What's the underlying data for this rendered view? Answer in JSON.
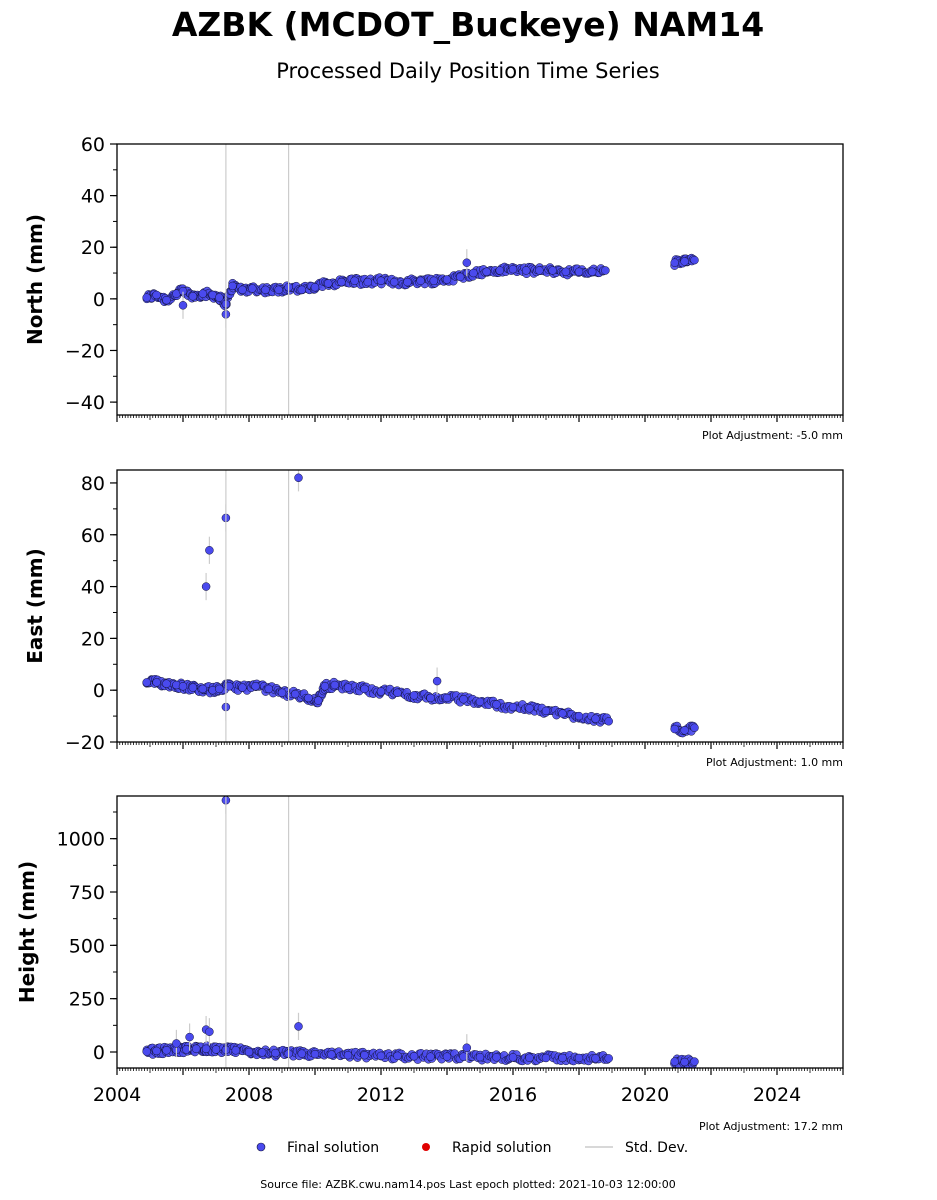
{
  "header": {
    "title": "AZBK (MCDOT_Buckeye) NAM14",
    "subtitle": "Processed Daily Position Time Series"
  },
  "legend": {
    "final": "Final solution",
    "rapid": "Rapid solution",
    "stddev": "Std. Dev."
  },
  "footer": {
    "source": "Source file: AZBK.cwu.nam14.pos  Last epoch plotted: 2021-10-03 12:00:00"
  },
  "colors": {
    "final": "#4a4aee",
    "rapid": "#e00000",
    "stddev": "#cccccc",
    "edge": "#111133"
  },
  "chart_data": [
    {
      "type": "scatter",
      "ylabel": "North (mm)",
      "xlim": [
        2004,
        2026
      ],
      "ylim": [
        -45,
        60
      ],
      "yticks": [
        -40,
        -20,
        0,
        20,
        40,
        60
      ],
      "adjustment": "Plot Adjustment: -5.0 mm",
      "series": [
        {
          "points": [
            [
              2004.9,
              0.5
            ],
            [
              2005.2,
              1.5
            ],
            [
              2005.5,
              -0.5
            ],
            [
              2005.8,
              2.0
            ],
            [
              2006.0,
              3.0
            ],
            [
              2006.3,
              1.0
            ],
            [
              2006.6,
              2.0
            ],
            [
              2006.9,
              1.5
            ],
            [
              2007.1,
              0.5
            ],
            [
              2007.3,
              -2.0
            ],
            [
              2007.5,
              5.0
            ],
            [
              2007.8,
              3.5
            ],
            [
              2008.1,
              4.0
            ],
            [
              2008.5,
              3.5
            ],
            [
              2008.9,
              3.5
            ],
            [
              2009.2,
              4.5
            ],
            [
              2009.6,
              3.5
            ],
            [
              2010.0,
              4.5
            ],
            [
              2010.4,
              6.0
            ],
            [
              2010.8,
              6.5
            ],
            [
              2011.2,
              7.0
            ],
            [
              2011.6,
              6.5
            ],
            [
              2012.0,
              7.0
            ],
            [
              2012.4,
              6.5
            ],
            [
              2012.8,
              6.5
            ],
            [
              2013.2,
              7.0
            ],
            [
              2013.6,
              7.0
            ],
            [
              2014.0,
              7.5
            ],
            [
              2014.4,
              8.5
            ],
            [
              2014.8,
              10.0
            ],
            [
              2015.2,
              10.5
            ],
            [
              2015.6,
              11.0
            ],
            [
              2016.0,
              11.5
            ],
            [
              2016.4,
              11.0
            ],
            [
              2016.8,
              11.0
            ],
            [
              2017.2,
              11.0
            ],
            [
              2017.6,
              10.5
            ],
            [
              2018.0,
              10.5
            ],
            [
              2018.4,
              10.5
            ],
            [
              2018.8,
              11.0
            ],
            [
              2020.9,
              14.0
            ],
            [
              2021.2,
              14.5
            ],
            [
              2021.5,
              15.0
            ]
          ],
          "outliers": [
            [
              2007.3,
              -6.0
            ],
            [
              2006.0,
              -2.5
            ],
            [
              2014.6,
              14.0
            ]
          ]
        }
      ]
    },
    {
      "type": "scatter",
      "ylabel": "East (mm)",
      "xlim": [
        2004,
        2026
      ],
      "ylim": [
        -20,
        85
      ],
      "yticks": [
        -20,
        0,
        20,
        40,
        60,
        80
      ],
      "adjustment": "Plot Adjustment: 1.0 mm",
      "series": [
        {
          "points": [
            [
              2004.9,
              3.0
            ],
            [
              2005.2,
              3.0
            ],
            [
              2005.5,
              2.5
            ],
            [
              2005.8,
              2.0
            ],
            [
              2006.0,
              1.5
            ],
            [
              2006.3,
              1.0
            ],
            [
              2006.6,
              0.5
            ],
            [
              2006.9,
              0.0
            ],
            [
              2007.1,
              0.5
            ],
            [
              2007.4,
              1.5
            ],
            [
              2007.8,
              1.0
            ],
            [
              2008.2,
              1.5
            ],
            [
              2008.6,
              0.5
            ],
            [
              2009.0,
              -1.0
            ],
            [
              2009.4,
              -1.5
            ],
            [
              2009.8,
              -3.0
            ],
            [
              2010.1,
              -4.0
            ],
            [
              2010.3,
              1.5
            ],
            [
              2010.6,
              2.0
            ],
            [
              2011.0,
              1.0
            ],
            [
              2011.5,
              0.5
            ],
            [
              2012.0,
              -0.5
            ],
            [
              2012.5,
              -1.0
            ],
            [
              2013.0,
              -2.0
            ],
            [
              2013.5,
              -3.0
            ],
            [
              2014.0,
              -3.0
            ],
            [
              2014.5,
              -3.5
            ],
            [
              2015.0,
              -4.5
            ],
            [
              2015.5,
              -5.5
            ],
            [
              2016.0,
              -6.5
            ],
            [
              2016.5,
              -7.0
            ],
            [
              2017.0,
              -8.0
            ],
            [
              2017.5,
              -9.0
            ],
            [
              2018.0,
              -10.0
            ],
            [
              2018.5,
              -11.0
            ],
            [
              2018.9,
              -12.0
            ],
            [
              2020.9,
              -15.0
            ],
            [
              2021.2,
              -15.5
            ],
            [
              2021.5,
              -14.5
            ]
          ],
          "outliers": [
            [
              2006.7,
              40.0
            ],
            [
              2006.8,
              54.0
            ],
            [
              2007.3,
              66.5
            ],
            [
              2009.5,
              82.0
            ],
            [
              2007.3,
              -6.5
            ],
            [
              2013.7,
              3.5
            ]
          ]
        }
      ]
    },
    {
      "type": "scatter",
      "ylabel": "Height (mm)",
      "xlim": [
        2004,
        2026
      ],
      "ylim": [
        -75,
        1200
      ],
      "yticks": [
        0,
        250,
        500,
        750,
        1000
      ],
      "xticks": [
        2004,
        2008,
        2012,
        2016,
        2020,
        2024
      ],
      "adjustment": "Plot Adjustment: 17.2 mm",
      "series": [
        {
          "points": [
            [
              2004.9,
              2
            ],
            [
              2005.2,
              5
            ],
            [
              2005.5,
              8
            ],
            [
              2005.8,
              10
            ],
            [
              2006.1,
              12
            ],
            [
              2006.4,
              15
            ],
            [
              2006.7,
              15
            ],
            [
              2007.0,
              12
            ],
            [
              2007.3,
              10
            ],
            [
              2007.6,
              8
            ],
            [
              2008.0,
              0
            ],
            [
              2008.4,
              -2
            ],
            [
              2008.8,
              -5
            ],
            [
              2009.2,
              -8
            ],
            [
              2009.6,
              -8
            ],
            [
              2010.0,
              -10
            ],
            [
              2010.5,
              -12
            ],
            [
              2011.0,
              -15
            ],
            [
              2011.5,
              -15
            ],
            [
              2012.0,
              -18
            ],
            [
              2012.5,
              -18
            ],
            [
              2013.0,
              -20
            ],
            [
              2013.5,
              -22
            ],
            [
              2014.0,
              -22
            ],
            [
              2014.5,
              -22
            ],
            [
              2015.0,
              -24
            ],
            [
              2015.5,
              -25
            ],
            [
              2016.0,
              -25
            ],
            [
              2016.5,
              -27
            ],
            [
              2017.0,
              -28
            ],
            [
              2017.5,
              -28
            ],
            [
              2018.0,
              -28
            ],
            [
              2018.5,
              -30
            ],
            [
              2018.9,
              -30
            ],
            [
              2020.9,
              -45
            ],
            [
              2021.2,
              -47
            ],
            [
              2021.5,
              -45
            ]
          ],
          "outliers": [
            [
              2006.2,
              70
            ],
            [
              2006.7,
              105
            ],
            [
              2006.8,
              95
            ],
            [
              2009.5,
              120
            ],
            [
              2007.3,
              1180
            ],
            [
              2005.8,
              40
            ],
            [
              2014.6,
              20
            ]
          ]
        }
      ]
    }
  ]
}
